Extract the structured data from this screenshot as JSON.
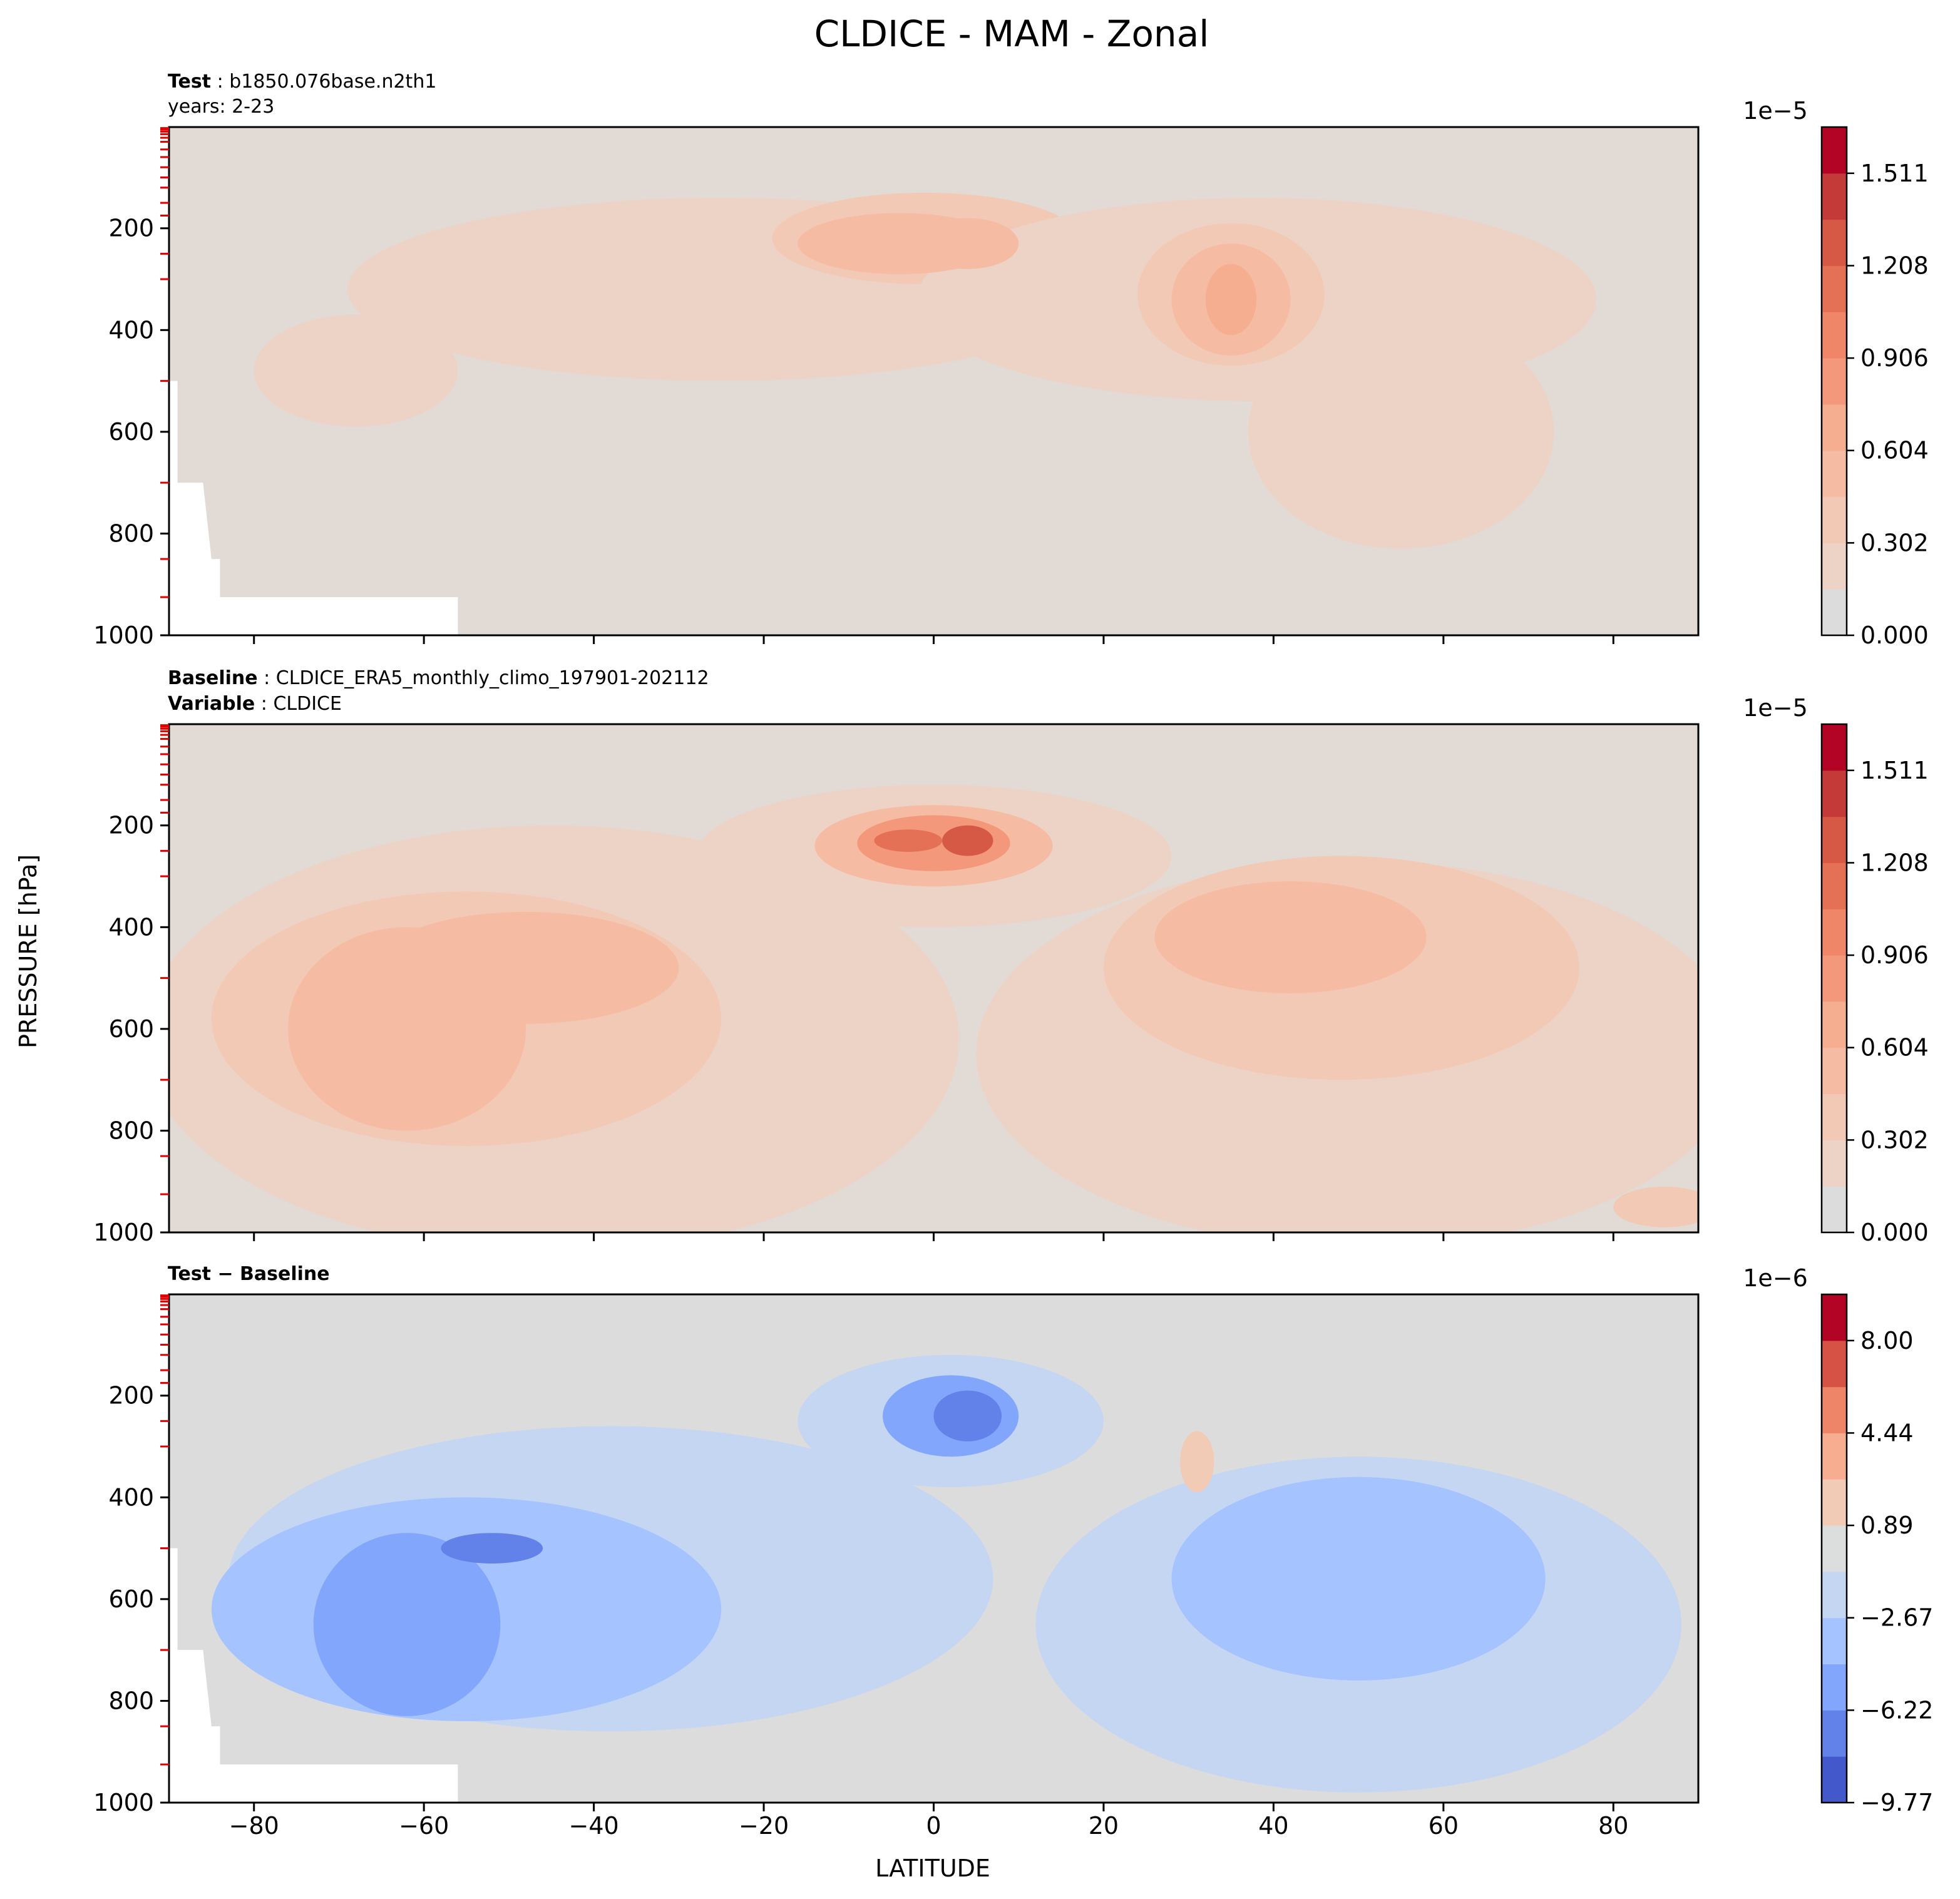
{
  "chart_data": {
    "type": "heatmap",
    "title": "CLDICE - MAM - Zonal",
    "xlabel": "LATITUDE",
    "ylabel": "PRESSURE [hPa]",
    "xlim": [
      -90,
      90
    ],
    "ylim": [
      1000,
      1
    ],
    "xticks": [
      -80,
      -60,
      -40,
      -20,
      0,
      20,
      40,
      60,
      80
    ],
    "xtick_labels": [
      "−80",
      "−60",
      "−40",
      "−20",
      "0",
      "20",
      "40",
      "60",
      "80"
    ],
    "yticks": [
      200,
      400,
      600,
      800,
      1000
    ],
    "ytick_labels": [
      "200",
      "400",
      "600",
      "800",
      "1000"
    ],
    "panels": [
      {
        "id": "test",
        "line1_key": "Test",
        "line1_value": "b1850.076base.n2th1",
        "line2_key": "",
        "line2_value": "years: 2-23",
        "colorbar_multiplier": "1e−5",
        "colorbar_tick_labels": [
          "0.000",
          "0.302",
          "0.604",
          "0.906",
          "1.208",
          "1.511"
        ],
        "colorbar_colors": [
          "#dddcdc",
          "#ecd3c6",
          "#f2c9b4",
          "#f5bca3",
          "#f6ae90",
          "#f4987b",
          "#ef8668",
          "#e47156",
          "#d55945",
          "#c43a39",
          "#b40426"
        ],
        "background": "#e2dad5",
        "missing_region": "white",
        "blobs": [
          {
            "lat": -25,
            "p": 320,
            "dlat": 44,
            "dp": 180,
            "level": 1
          },
          {
            "lat": -68,
            "p": 480,
            "dlat": 12,
            "dp": 110,
            "level": 1
          },
          {
            "lat": -1,
            "p": 220,
            "dlat": 18,
            "dp": 90,
            "level": 2
          },
          {
            "lat": 38,
            "p": 340,
            "dlat": 40,
            "dp": 200,
            "level": 1
          },
          {
            "lat": 55,
            "p": 600,
            "dlat": 18,
            "dp": 230,
            "level": 1
          },
          {
            "lat": -4,
            "p": 230,
            "dlat": 12,
            "dp": 60,
            "level": 3
          },
          {
            "lat": 4,
            "p": 230,
            "dlat": 6,
            "dp": 50,
            "level": 3
          },
          {
            "lat": 35,
            "p": 330,
            "dlat": 11,
            "dp": 140,
            "level": 2
          },
          {
            "lat": 35,
            "p": 340,
            "dlat": 7,
            "dp": 110,
            "level": 3
          },
          {
            "lat": 35,
            "p": 340,
            "dlat": 3,
            "dp": 70,
            "level": 4
          }
        ]
      },
      {
        "id": "baseline",
        "line1_key": "Baseline",
        "line1_value": "CLDICE_ERA5_monthly_climo_197901-202112",
        "line2_key": "Variable",
        "line2_value": "CLDICE",
        "colorbar_multiplier": "1e−5",
        "colorbar_tick_labels": [
          "0.000",
          "0.302",
          "0.604",
          "0.906",
          "1.208",
          "1.511"
        ],
        "colorbar_colors": [
          "#dddcdc",
          "#ecd3c6",
          "#f2c9b4",
          "#f5bca3",
          "#f6ae90",
          "#f4987b",
          "#ef8668",
          "#e47156",
          "#d55945",
          "#c43a39",
          "#b40426"
        ],
        "background": "#e2dad5",
        "missing_region": "none",
        "blobs": [
          {
            "lat": -45,
            "p": 620,
            "dlat": 48,
            "dp": 420,
            "level": 1
          },
          {
            "lat": 50,
            "p": 650,
            "dlat": 45,
            "dp": 380,
            "level": 1
          },
          {
            "lat": 0,
            "p": 260,
            "dlat": 28,
            "dp": 140,
            "level": 1
          },
          {
            "lat": -55,
            "p": 580,
            "dlat": 30,
            "dp": 250,
            "level": 2
          },
          {
            "lat": 48,
            "p": 480,
            "dlat": 28,
            "dp": 220,
            "level": 2
          },
          {
            "lat": -62,
            "p": 600,
            "dlat": 14,
            "dp": 200,
            "level": 3
          },
          {
            "lat": -48,
            "p": 480,
            "dlat": 18,
            "dp": 110,
            "level": 3
          },
          {
            "lat": 42,
            "p": 420,
            "dlat": 16,
            "dp": 110,
            "level": 3
          },
          {
            "lat": 0,
            "p": 240,
            "dlat": 14,
            "dp": 80,
            "level": 3
          },
          {
            "lat": 0,
            "p": 235,
            "dlat": 9,
            "dp": 55,
            "level": 5
          },
          {
            "lat": 4,
            "p": 230,
            "dlat": 3,
            "dp": 30,
            "level": 8
          },
          {
            "lat": -3,
            "p": 230,
            "dlat": 4,
            "dp": 22,
            "level": 7
          },
          {
            "lat": 86,
            "p": 950,
            "dlat": 6,
            "dp": 40,
            "level": 2
          }
        ]
      },
      {
        "id": "difference",
        "line1_key": "Test − Baseline",
        "line1_value": "",
        "line2_key": "",
        "line2_value": "",
        "colorbar_multiplier": "1e−6",
        "colorbar_tick_labels": [
          "−9.77",
          "−6.22",
          "−2.67",
          "0.89",
          "4.44",
          "8.00"
        ],
        "colorbar_colors": [
          "#4358cb",
          "#6282ea",
          "#82a6fb",
          "#a5c3fe",
          "#c5d6f2",
          "#dcdddd",
          "#f2cbb7",
          "#f7ad90",
          "#ee8468",
          "#d65244",
          "#b40426"
        ],
        "background": "#dcdcdc",
        "missing_region": "white",
        "blobs": [
          {
            "lat": -38,
            "p": 560,
            "dlat": 45,
            "dp": 300,
            "level": -1
          },
          {
            "lat": 50,
            "p": 650,
            "dlat": 38,
            "dp": 330,
            "level": -1
          },
          {
            "lat": 2,
            "p": 250,
            "dlat": 18,
            "dp": 130,
            "level": -1
          },
          {
            "lat": -55,
            "p": 620,
            "dlat": 30,
            "dp": 220,
            "level": -2
          },
          {
            "lat": 50,
            "p": 560,
            "dlat": 22,
            "dp": 200,
            "level": -2
          },
          {
            "lat": -62,
            "p": 650,
            "dlat": 11,
            "dp": 180,
            "level": -3
          },
          {
            "lat": 2,
            "p": 240,
            "dlat": 8,
            "dp": 80,
            "level": -3
          },
          {
            "lat": 4,
            "p": 240,
            "dlat": 4,
            "dp": 50,
            "level": -4
          },
          {
            "lat": -52,
            "p": 500,
            "dlat": 6,
            "dp": 30,
            "level": -4
          },
          {
            "lat": 31,
            "p": 330,
            "dlat": 2,
            "dp": 60,
            "level": 1
          }
        ]
      }
    ]
  }
}
